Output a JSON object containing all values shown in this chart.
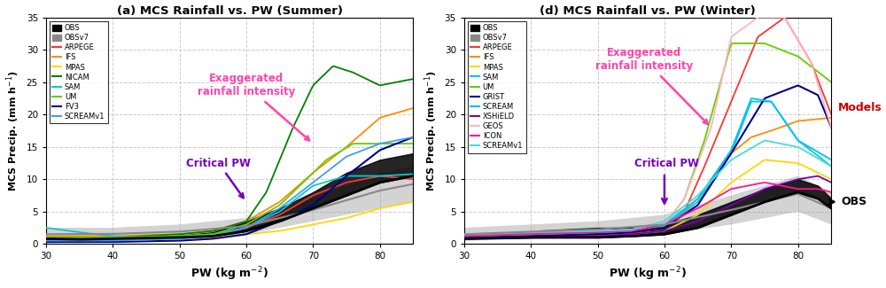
{
  "panel_a": {
    "title": "(a) MCS Rainfall vs. PW (Summer)",
    "xlabel": "PW (kg m$^{-2}$)",
    "ylabel": "MCS Precip. (mm h$^{-1}$)",
    "ylim": [
      0,
      35
    ],
    "xlim": [
      30,
      85
    ],
    "yticks": [
      0,
      5,
      10,
      15,
      20,
      25,
      30,
      35
    ],
    "xticks": [
      30,
      40,
      50,
      60,
      70,
      80
    ],
    "colors": {
      "OBS": "#000000",
      "OBSv7": "#888888",
      "ARPEGE": "#FF3333",
      "IFS": "#FF8C00",
      "MPAS": "#FFD700",
      "NICAM": "#008000",
      "SAM": "#00CCCC",
      "UM": "#66CC00",
      "FV3": "#00008B",
      "SCREAMv1": "#4499FF"
    }
  },
  "panel_d": {
    "title": "(d) MCS Rainfall vs. PW (Winter)",
    "xlabel": "PW (kg m$^{-2}$)",
    "ylabel": "MCS Precip. (mm h$^{-1}$)",
    "ylim": [
      0,
      35
    ],
    "xlim": [
      30,
      85
    ],
    "yticks": [
      0,
      5,
      10,
      15,
      20,
      25,
      30,
      35
    ],
    "xticks": [
      30,
      40,
      50,
      60,
      70,
      80
    ],
    "colors": {
      "OBS": "#000000",
      "OBSv7": "#888888",
      "ARPEGE": "#FF3333",
      "IFS": "#FF8C00",
      "MPAS": "#FFD700",
      "SAM": "#00CCCC",
      "UM": "#66CC00",
      "GRIST": "#00008B",
      "SCREAM": "#00BFFF",
      "XSHiELD": "#7700AA",
      "GEOS": "#FFB6C1",
      "ICON": "#FF1493",
      "SCREAMv1": "#44DDDD"
    }
  },
  "background_color": "#FFFFFF",
  "grid_color": "#999999",
  "exag_color": "#FF44AA",
  "critical_color": "#7700BB"
}
